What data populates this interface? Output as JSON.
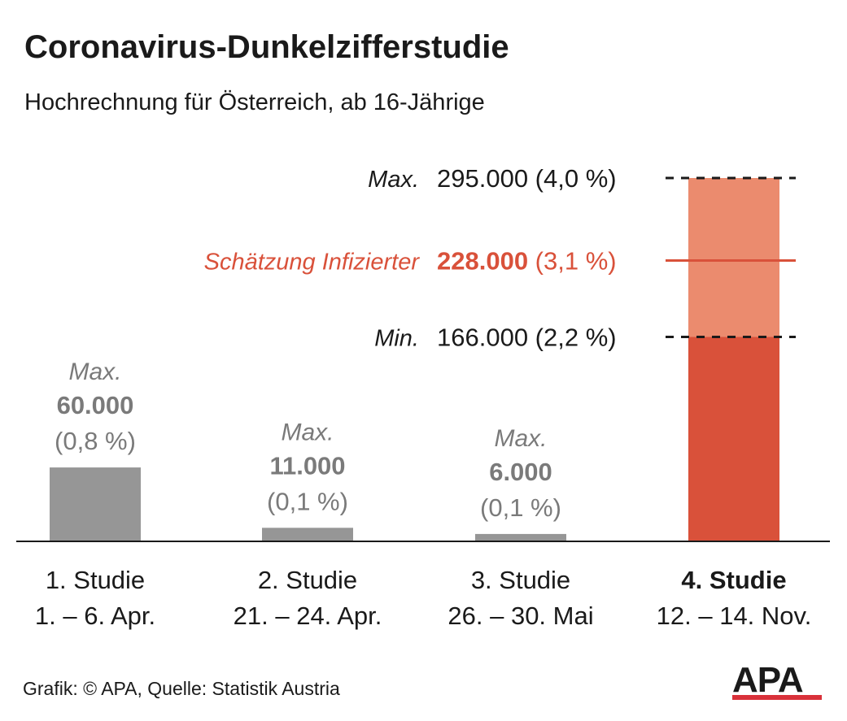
{
  "header": {
    "title": "Coronavirus-Dunkelzifferstudie",
    "subtitle": "Hochrechnung für Österreich, ab 16-Jährige"
  },
  "colors": {
    "grey_bar": "#969696",
    "grey_text": "#7a7a7a",
    "accent": "#d9513a",
    "accent_light": "#eb8b6e",
    "text": "#1a1a1a"
  },
  "chart_data": {
    "type": "bar",
    "title": "Coronavirus-Dunkelzifferstudie",
    "subtitle": "Hochrechnung für Österreich, ab 16-Jährige",
    "ylim": [
      0,
      295000
    ],
    "grid": false,
    "categories": [
      {
        "line1": "1. Studie",
        "line2": "1. – 6. Apr.",
        "bold": false
      },
      {
        "line1": "2. Studie",
        "line2": "21. – 24. Apr.",
        "bold": false
      },
      {
        "line1": "3. Studie",
        "line2": "26. – 30. Mai",
        "bold": false
      },
      {
        "line1": "4. Studie",
        "line2": "12. – 14. Nov.",
        "bold": true
      }
    ],
    "values": [
      60000,
      11000,
      6000,
      295000
    ],
    "labels": [
      {
        "prefix": "Max.",
        "value": "60.000",
        "pct": "(0,8 %)"
      },
      {
        "prefix": "Max.",
        "value": "11.000",
        "pct": "(0,1 %)"
      },
      {
        "prefix": "Max.",
        "value": "6.000",
        "pct": "(0,1 %)"
      }
    ],
    "study4": {
      "min": 166000,
      "estimate": 228000,
      "max": 295000,
      "max_label": {
        "prefix": "Max.",
        "value": "295.000 (4,0 %)"
      },
      "estimate_label": {
        "prefix": "Schätzung Infizierter",
        "value": "228.000",
        "pct": "(3,1 %)"
      },
      "min_label": {
        "prefix": "Min.",
        "value": "166.000 (2,2 %)"
      }
    }
  },
  "footer": {
    "source": "Grafik: © APA, Quelle: Statistik Austria",
    "logo_text": "APA"
  }
}
